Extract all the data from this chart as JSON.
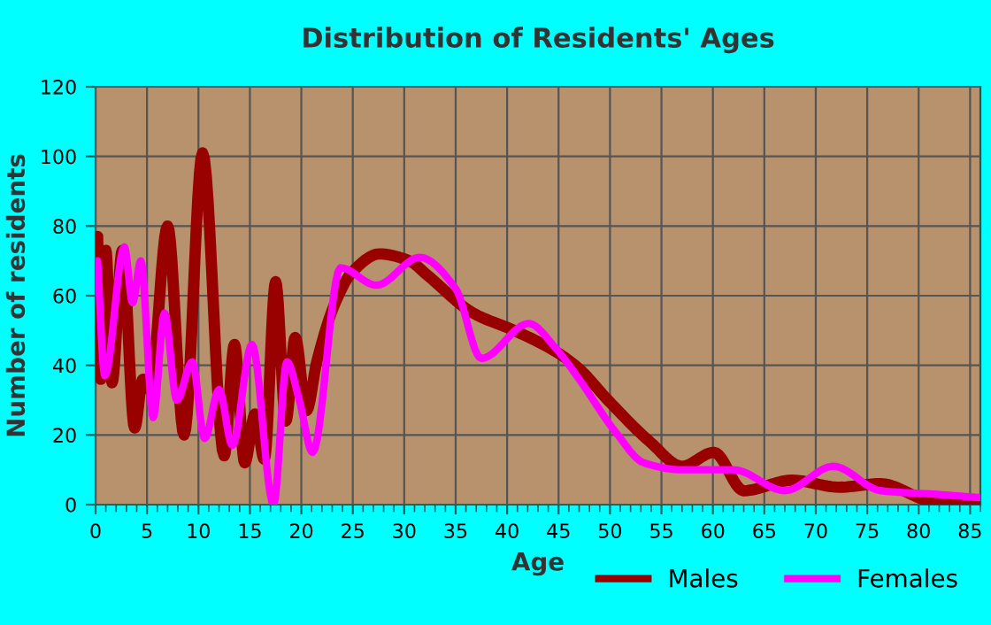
{
  "chart_data": {
    "type": "line",
    "title": "Distribution of Residents' Ages",
    "xlabel": "Age",
    "ylabel": "Number of residents",
    "xlim": [
      0,
      86
    ],
    "xticks": [
      0,
      5,
      10,
      15,
      20,
      25,
      30,
      35,
      40,
      45,
      50,
      55,
      60,
      65,
      70,
      75,
      80,
      85
    ],
    "ylim": [
      0,
      120
    ],
    "yticks": [
      0,
      20,
      40,
      60,
      80,
      100,
      120
    ],
    "grid": true,
    "legend": "bottom right",
    "marker": "none",
    "line_style": "solid",
    "series": [
      {
        "name": "Males",
        "color": "#990000",
        "x": [
          0.2,
          0.5,
          1,
          1.6,
          2.6,
          3.8,
          4.6,
          5.3,
          7,
          8.6,
          10.4,
          12.5,
          13.5,
          14.5,
          15.5,
          16.4,
          17.5,
          18.5,
          19.4,
          20.5,
          21.5,
          23.3,
          25,
          27.6,
          30.5,
          32.2,
          36.7,
          40.7,
          44.7,
          47,
          49.8,
          53.9,
          57,
          60.1,
          63,
          67.7,
          72.3,
          76.3,
          81.5,
          86
        ],
        "values": [
          77,
          36,
          73,
          35,
          73,
          22,
          36,
          33,
          80,
          20,
          101,
          14,
          46,
          12,
          26,
          13,
          64,
          24,
          48,
          27,
          41,
          58,
          67,
          72,
          70,
          66,
          55,
          50,
          44,
          39,
          30,
          18,
          11,
          15,
          4,
          7,
          5,
          6,
          1,
          1
        ]
      },
      {
        "name": "Females",
        "color": "#ff00ff",
        "x": [
          0.2,
          0.9,
          2.8,
          3.6,
          4.4,
          5.6,
          6.7,
          7.9,
          9.4,
          10.6,
          12,
          13.3,
          15.2,
          17.3,
          18.6,
          19.8,
          21.1,
          23.8,
          27.3,
          31.5,
          35,
          37.5,
          42.1,
          44.7,
          47,
          50.5,
          53.3,
          57,
          60,
          62,
          67,
          71.7,
          76.3,
          81.5,
          86
        ],
        "values": [
          70,
          37,
          74,
          58,
          70,
          25,
          55,
          30,
          41,
          19,
          33,
          17,
          46,
          0,
          41,
          30,
          15,
          68,
          63,
          71,
          62,
          42,
          52,
          45,
          36,
          21,
          12,
          10,
          10,
          10,
          4,
          11,
          4,
          3,
          2
        ]
      }
    ]
  }
}
